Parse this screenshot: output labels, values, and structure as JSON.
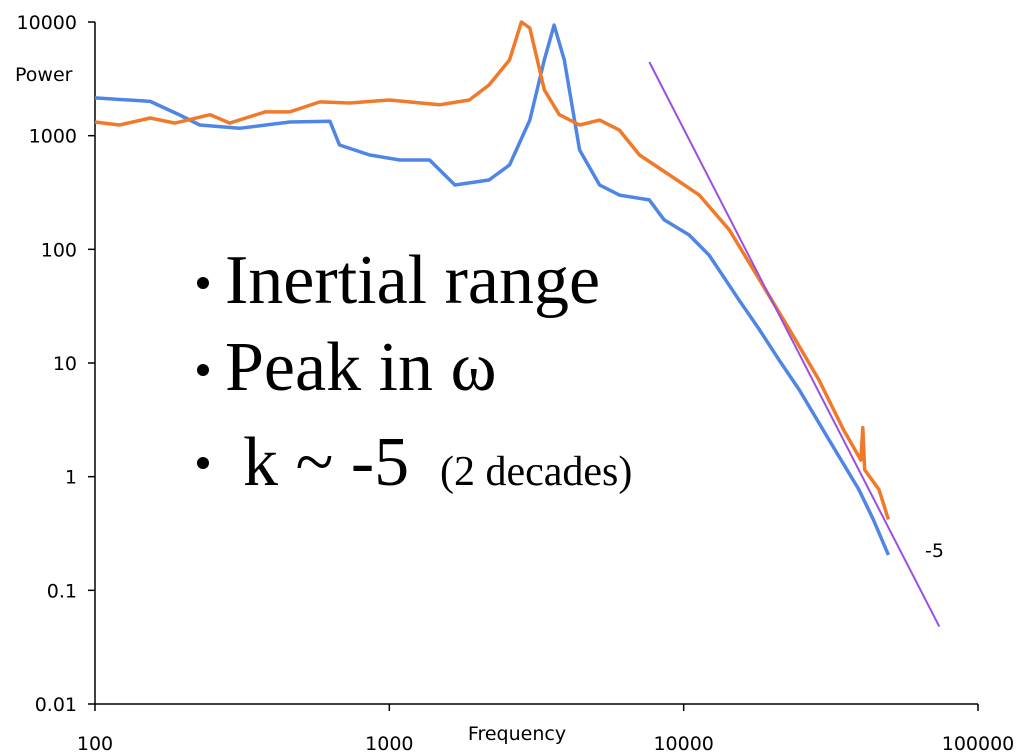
{
  "chart_data": {
    "type": "line",
    "x_label": "Frequency",
    "y_label": "Power",
    "log_x": true,
    "log_y": true,
    "xlim": [
      100,
      100000
    ],
    "ylim": [
      0.01,
      10000
    ],
    "xticks": [
      100,
      1000,
      10000,
      100000
    ],
    "yticks": [
      0.01,
      0.1,
      1,
      10,
      100,
      1000,
      10000
    ],
    "series": [
      {
        "color": "#4f86e6",
        "x": [
          100,
          154,
          194,
          227,
          310,
          459,
          628,
          677,
          858,
          1085,
          1370,
          1670,
          2180,
          2560,
          3000,
          3360,
          3630,
          3930,
          4430,
          5180,
          6050,
          7640,
          8580,
          10430,
          12200,
          15400,
          18100,
          21100,
          24700,
          31200,
          39400,
          44100,
          49600
        ],
        "values": [
          2150,
          2000,
          1520,
          1240,
          1160,
          1320,
          1340,
          828,
          676,
          611,
          611,
          368,
          407,
          552,
          1370,
          4630,
          9400,
          4630,
          748,
          368,
          300,
          272,
          182,
          134,
          89,
          36,
          19.6,
          10.6,
          5.8,
          2.1,
          0.77,
          0.42,
          0.205
        ]
      },
      {
        "color": "#f07a2a",
        "x": [
          100,
          121,
          154,
          187,
          246,
          287,
          378,
          459,
          581,
          733,
          1000,
          1480,
          1870,
          2180,
          2560,
          2810,
          3000,
          3360,
          3780,
          4430,
          5180,
          6050,
          7080,
          8950,
          11300,
          14300,
          18100,
          22900,
          28800,
          34900,
          40000,
          40600,
          41200,
          46100,
          49600
        ],
        "values": [
          1320,
          1240,
          1430,
          1290,
          1530,
          1290,
          1620,
          1620,
          1980,
          1940,
          2060,
          1870,
          2060,
          2790,
          4630,
          10000,
          8860,
          2530,
          1530,
          1240,
          1370,
          1120,
          676,
          451,
          300,
          148,
          54,
          19.6,
          7.1,
          2.6,
          1.4,
          2.7,
          1.15,
          0.77,
          0.42
        ]
      }
    ],
    "reference_line": {
      "label": "-5",
      "color": "#9b4fe0",
      "x": [
        7640,
        73900
      ],
      "values": [
        4450,
        0.048
      ]
    },
    "annotations": [
      "Inertial range",
      "Peak in ω",
      "k ~ -5",
      "(2 decades)"
    ]
  }
}
